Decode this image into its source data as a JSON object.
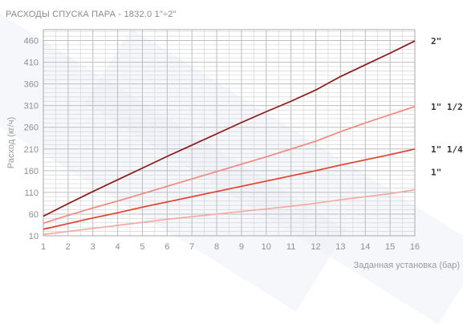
{
  "chart_data": {
    "type": "line",
    "title": "РАСХОДЫ СПУСКА ПАРА - 1832.0 1\"÷2\"",
    "xlabel": "Заданная установка (бар)",
    "ylabel": "Расход (кг/ч)",
    "x": [
      1,
      2,
      3,
      4,
      5,
      6,
      7,
      8,
      9,
      10,
      11,
      12,
      13,
      14,
      15,
      16
    ],
    "xlim": [
      1,
      16
    ],
    "ylim": [
      10,
      485
    ],
    "yticks": [
      10,
      60,
      110,
      160,
      210,
      260,
      310,
      360,
      410,
      460
    ],
    "grid": true,
    "series_labels_position": "right of plot",
    "series": [
      {
        "name": "2\"",
        "color": "#8b1a1a",
        "values": [
          55,
          84,
          112,
          139,
          166,
          193,
          219,
          245,
          271,
          296,
          320,
          346,
          377,
          404,
          431,
          459
        ]
      },
      {
        "name": "1\" 1/2",
        "color": "#f08a80",
        "values": [
          39,
          57,
          74,
          90,
          107,
          124,
          141,
          158,
          175,
          192,
          210,
          228,
          250,
          270,
          289,
          308
        ]
      },
      {
        "name": "1\" 1/4",
        "color": "#e0402e",
        "values": [
          25,
          38,
          51,
          63,
          76,
          88,
          100,
          112,
          124,
          136,
          148,
          160,
          173,
          185,
          197,
          210
        ]
      },
      {
        "name": "1\"",
        "color": "#f4aaa2",
        "values": [
          13,
          20,
          27,
          34,
          41,
          48,
          54,
          60,
          66,
          72,
          78,
          85,
          93,
          100,
          107,
          116
        ]
      }
    ]
  }
}
